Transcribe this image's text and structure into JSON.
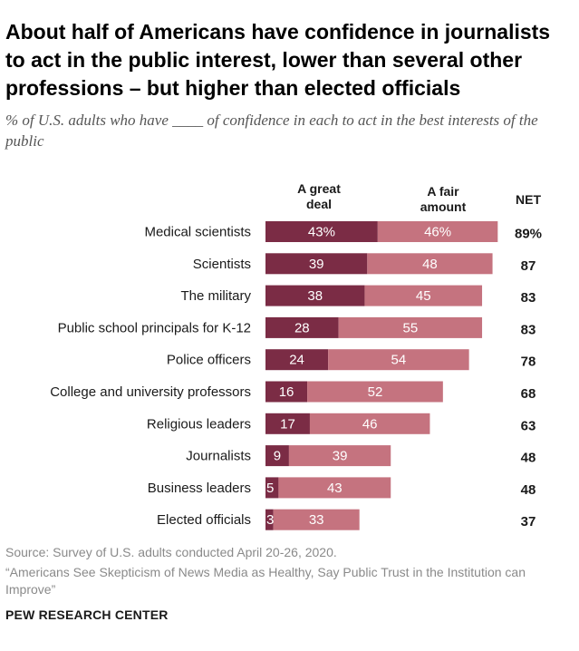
{
  "title": "About half of Americans have confidence in journalists to act in the public interest, lower than several other professions – but higher than elected officials",
  "subtitle": "% of U.S. adults who have ____ of confidence in each to act in the best interests of the public",
  "chart_data": {
    "type": "bar",
    "orientation": "horizontal",
    "stacked": true,
    "categories": [
      "Medical scientists",
      "Scientists",
      "The military",
      "Public school principals for K-12",
      "Police officers",
      "College and university professors",
      "Religious leaders",
      "Journalists",
      "Business leaders",
      "Elected officials"
    ],
    "series": [
      {
        "name": "A great deal",
        "values": [
          43,
          39,
          38,
          28,
          24,
          16,
          17,
          9,
          5,
          3
        ],
        "labels": [
          "43%",
          "39",
          "38",
          "28",
          "24",
          "16",
          "17",
          "9",
          "5",
          "3"
        ],
        "color": "#7b2c45"
      },
      {
        "name": "A fair amount",
        "values": [
          46,
          48,
          45,
          55,
          54,
          52,
          46,
          39,
          43,
          33
        ],
        "labels": [
          "46%",
          "48",
          "45",
          "55",
          "54",
          "52",
          "46",
          "39",
          "43",
          "33"
        ],
        "color": "#c5737f"
      }
    ],
    "net": {
      "header": "NET",
      "values": [
        89,
        87,
        83,
        83,
        78,
        68,
        63,
        48,
        48,
        37
      ],
      "labels": [
        "89%",
        "87",
        "83",
        "83",
        "78",
        "68",
        "63",
        "48",
        "48",
        "37"
      ]
    },
    "header_great": [
      "A great",
      "deal"
    ],
    "header_fair": [
      "A fair",
      "amount"
    ],
    "xlim": [
      0,
      100
    ]
  },
  "source": "Source: Survey of U.S. adults conducted April 20-26, 2020.",
  "note": "“Americans See Skepticism of News Media as Healthy, Say Public Trust in the Institution can Improve”",
  "brand": "PEW RESEARCH CENTER"
}
